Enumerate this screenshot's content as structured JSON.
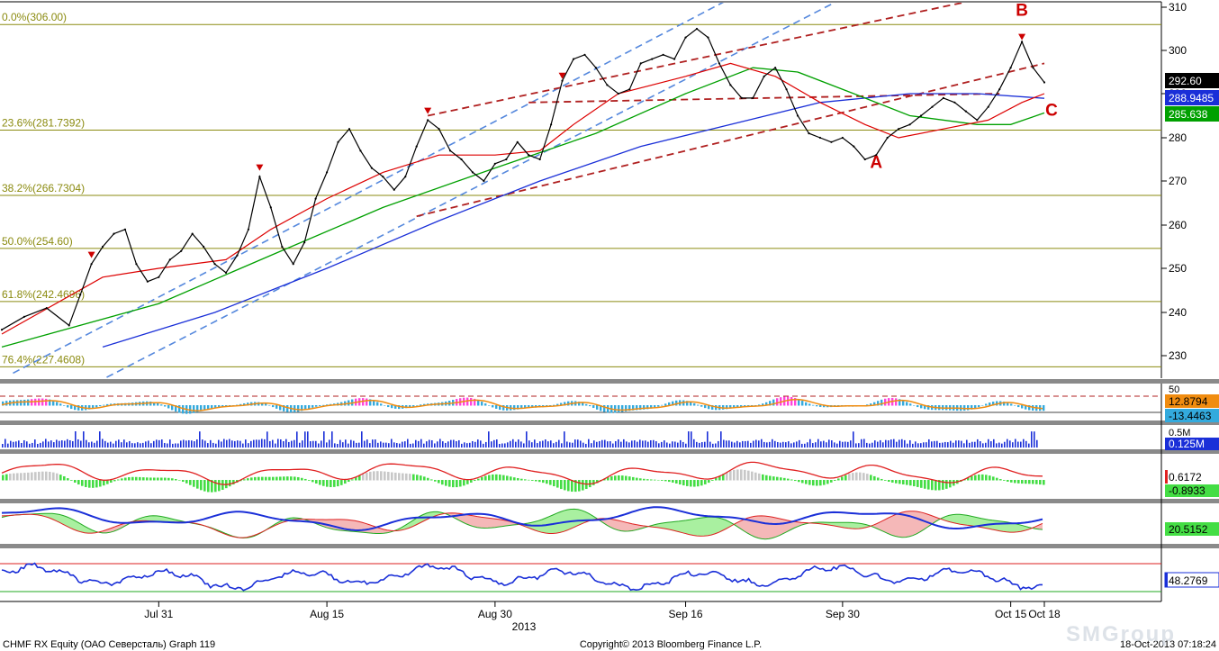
{
  "footer": {
    "security": "CHMF RX Equity (ОАО Северсталь) Graph 119",
    "copyright": "Copyright© 2013 Bloomberg Finance L.P.",
    "timestamp": "18-Oct-2013 07:18:24",
    "watermark": "SMGroup"
  },
  "chart_data": {
    "type": "line",
    "x_axis": {
      "tick_labels": [
        "Jul 31",
        "Aug 15",
        "Aug 30",
        "Sep 16",
        "Sep 30",
        "Oct 15",
        "Oct 18"
      ],
      "year_label": "2013",
      "range": [
        "Jul 17",
        "Oct 18"
      ]
    },
    "y_axis": {
      "ticks": [
        230,
        240,
        250,
        260,
        270,
        280,
        290,
        300,
        310
      ],
      "ylim": [
        224,
        312
      ],
      "position": "right"
    },
    "grid": false,
    "colors": {
      "price": "#000000",
      "ma_short": "#dd0000",
      "ma_mid": "#00a000",
      "ma_long": "#1a2fd8",
      "channel_blue": "#5588dd",
      "channel_red": "#b02020",
      "fib": "#8b8b10",
      "annotation": "#cc0000",
      "label_price": "#000000",
      "label_ma_long": "#1a2fd8",
      "label_ma_mid": "#00a000"
    },
    "last_value_labels": {
      "price": "292.60",
      "ma_long": "288.9485",
      "ma_mid": "285.638"
    },
    "fibonacci_levels": [
      {
        "label": "0.0%(306.00)",
        "value": 306.0
      },
      {
        "label": "23.6%(281.7392)",
        "value": 281.7392
      },
      {
        "label": "38.2%(266.7304)",
        "value": 266.7304
      },
      {
        "label": "50.0%(254.60)",
        "value": 254.6
      },
      {
        "label": "61.8%(242.4696)",
        "value": 242.4696
      },
      {
        "label": "76.4%(227.4608)",
        "value": 227.4608
      }
    ],
    "price_series": [
      [
        "Jul 17",
        236
      ],
      [
        "Jul 19",
        239
      ],
      [
        "Jul 21",
        241
      ],
      [
        "Jul 23",
        237
      ],
      [
        "Jul 24",
        244
      ],
      [
        "Jul 25",
        251
      ],
      [
        "Jul 26",
        255
      ],
      [
        "Jul 27",
        258
      ],
      [
        "Jul 28",
        259
      ],
      [
        "Jul 29",
        251
      ],
      [
        "Jul 30",
        247
      ],
      [
        "Jul 31",
        248
      ],
      [
        "Aug 1",
        252
      ],
      [
        "Aug 2",
        254
      ],
      [
        "Aug 3",
        258
      ],
      [
        "Aug 4",
        255
      ],
      [
        "Aug 5",
        251
      ],
      [
        "Aug 6",
        249
      ],
      [
        "Aug 7",
        253
      ],
      [
        "Aug 8",
        259
      ],
      [
        "Aug 9",
        271
      ],
      [
        "Aug 10",
        264
      ],
      [
        "Aug 11",
        255
      ],
      [
        "Aug 12",
        251
      ],
      [
        "Aug 13",
        256
      ],
      [
        "Aug 14",
        266
      ],
      [
        "Aug 15",
        272
      ],
      [
        "Aug 16",
        279
      ],
      [
        "Aug 17",
        282
      ],
      [
        "Aug 18",
        277
      ],
      [
        "Aug 19",
        273
      ],
      [
        "Aug 20",
        271
      ],
      [
        "Aug 21",
        268
      ],
      [
        "Aug 22",
        271
      ],
      [
        "Aug 23",
        278
      ],
      [
        "Aug 24",
        284
      ],
      [
        "Aug 25",
        282
      ],
      [
        "Aug 26",
        277
      ],
      [
        "Aug 27",
        275
      ],
      [
        "Aug 28",
        272
      ],
      [
        "Aug 29",
        270
      ],
      [
        "Aug 30",
        274
      ],
      [
        "Aug 31",
        275
      ],
      [
        "Sep 1",
        279
      ],
      [
        "Sep 2",
        276
      ],
      [
        "Sep 3",
        275
      ],
      [
        "Sep 4",
        283
      ],
      [
        "Sep 5",
        293
      ],
      [
        "Sep 6",
        298
      ],
      [
        "Sep 7",
        299
      ],
      [
        "Sep 8",
        296
      ],
      [
        "Sep 9",
        292
      ],
      [
        "Sep 10",
        290
      ],
      [
        "Sep 11",
        291
      ],
      [
        "Sep 12",
        297
      ],
      [
        "Sep 13",
        298
      ],
      [
        "Sep 14",
        299
      ],
      [
        "Sep 15",
        298
      ],
      [
        "Sep 16",
        303
      ],
      [
        "Sep 17",
        305
      ],
      [
        "Sep 18",
        303
      ],
      [
        "Sep 19",
        297
      ],
      [
        "Sep 20",
        292
      ],
      [
        "Sep 21",
        289
      ],
      [
        "Sep 22",
        289
      ],
      [
        "Sep 23",
        294
      ],
      [
        "Sep 24",
        296
      ],
      [
        "Sep 25",
        291
      ],
      [
        "Sep 26",
        285
      ],
      [
        "Sep 27",
        281
      ],
      [
        "Sep 28",
        280
      ],
      [
        "Sep 29",
        279
      ],
      [
        "Sep 30",
        280
      ],
      [
        "Oct 1",
        278
      ],
      [
        "Oct 2",
        275
      ],
      [
        "Oct 3",
        276
      ],
      [
        "Oct 4",
        280
      ],
      [
        "Oct 5",
        282
      ],
      [
        "Oct 6",
        283
      ],
      [
        "Oct 7",
        285
      ],
      [
        "Oct 8",
        287
      ],
      [
        "Oct 9",
        289
      ],
      [
        "Oct 10",
        288
      ],
      [
        "Oct 11",
        286
      ],
      [
        "Oct 12",
        284
      ],
      [
        "Oct 13",
        287
      ],
      [
        "Oct 14",
        291
      ],
      [
        "Oct 15",
        296
      ],
      [
        "Oct 16",
        302
      ],
      [
        "Oct 17",
        296
      ],
      [
        "Oct 18",
        292.6
      ]
    ],
    "ma_short_series": [
      [
        "Jul 17",
        235
      ],
      [
        "Jul 26",
        248
      ],
      [
        "Jul 31",
        250
      ],
      [
        "Aug 6",
        252
      ],
      [
        "Aug 10",
        259
      ],
      [
        "Aug 15",
        266
      ],
      [
        "Aug 20",
        272
      ],
      [
        "Aug 25",
        276
      ],
      [
        "Aug 30",
        276
      ],
      [
        "Sep 3",
        277
      ],
      [
        "Sep 6",
        283
      ],
      [
        "Sep 10",
        290
      ],
      [
        "Sep 16",
        294
      ],
      [
        "Sep 20",
        297
      ],
      [
        "Sep 24",
        294
      ],
      [
        "Sep 28",
        288
      ],
      [
        "Oct 2",
        283
      ],
      [
        "Oct 5",
        280
      ],
      [
        "Oct 9",
        282
      ],
      [
        "Oct 13",
        284
      ],
      [
        "Oct 16",
        288
      ],
      [
        "Oct 18",
        290
      ]
    ],
    "ma_mid_series": [
      [
        "Jul 17",
        232
      ],
      [
        "Jul 31",
        242
      ],
      [
        "Aug 10",
        253
      ],
      [
        "Aug 20",
        264
      ],
      [
        "Aug 30",
        273
      ],
      [
        "Sep 8",
        281
      ],
      [
        "Sep 16",
        290
      ],
      [
        "Sep 22",
        296
      ],
      [
        "Sep 26",
        295
      ],
      [
        "Oct 1",
        290
      ],
      [
        "Oct 6",
        285
      ],
      [
        "Oct 12",
        283
      ],
      [
        "Oct 15",
        283
      ],
      [
        "Oct 18",
        285.638
      ]
    ],
    "ma_long_series": [
      [
        "Jul 26",
        232
      ],
      [
        "Aug 5",
        240
      ],
      [
        "Aug 15",
        250
      ],
      [
        "Aug 25",
        261
      ],
      [
        "Sep 3",
        270
      ],
      [
        "Sep 12",
        278
      ],
      [
        "Sep 20",
        283
      ],
      [
        "Sep 28",
        288
      ],
      [
        "Oct 6",
        290
      ],
      [
        "Oct 12",
        290
      ],
      [
        "Oct 18",
        288.9485
      ]
    ],
    "annotations": [
      {
        "label": "A",
        "x": "Oct 3",
        "y": 273
      },
      {
        "label": "B",
        "x": "Oct 16",
        "y": 308
      },
      {
        "label": "C",
        "x": "Oct 18",
        "y": 285
      }
    ],
    "signal_markers": [
      {
        "x": "Jul 25",
        "y": 253
      },
      {
        "x": "Aug 9",
        "y": 273
      },
      {
        "x": "Aug 24",
        "y": 286
      },
      {
        "x": "Sep 5",
        "y": 294
      },
      {
        "x": "Oct 16",
        "y": 303
      }
    ],
    "trend_lines": [
      {
        "style": "dashed",
        "color": "channel_blue",
        "from": [
          "Jul 18",
          226
        ],
        "to": [
          "Sep 20",
          312
        ]
      },
      {
        "style": "dashed",
        "color": "channel_blue",
        "from": [
          "Jul 18",
          214
        ],
        "to": [
          "Sep 30",
          312
        ]
      },
      {
        "style": "dashed",
        "color": "channel_red",
        "from": [
          "Aug 23",
          262
        ],
        "to": [
          "Oct 18",
          297
        ]
      },
      {
        "style": "dashed",
        "color": "channel_red",
        "from": [
          "Aug 24",
          285
        ],
        "to": [
          "Oct 18",
          315
        ]
      },
      {
        "style": "dashed",
        "color": "channel_red",
        "from": [
          "Sep 2",
          288
        ],
        "to": [
          "Oct 14",
          290
        ]
      }
    ],
    "subpanels": [
      {
        "name": "momentum",
        "axis_label": "50",
        "values": [
          "12.8794",
          "-13.4463"
        ]
      },
      {
        "name": "volume",
        "axis_label": "0.5M",
        "values": [
          "0.125M"
        ]
      },
      {
        "name": "macd",
        "values": [
          "0.6172",
          "-0.8933"
        ]
      },
      {
        "name": "dmi",
        "values": [
          "20.5152"
        ]
      },
      {
        "name": "rsi",
        "values": [
          "48.2769"
        ]
      }
    ]
  }
}
